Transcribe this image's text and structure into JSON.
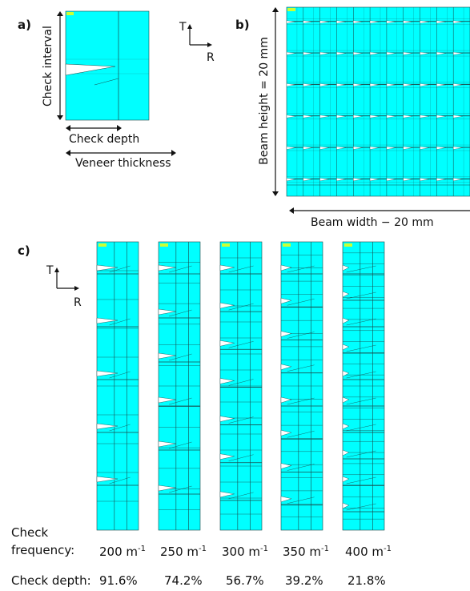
{
  "panels": {
    "a": "a)",
    "b": "b)",
    "c": "c)"
  },
  "axes": {
    "t": "T",
    "r": "R"
  },
  "panel_a": {
    "check_interval": "Check interval",
    "check_depth": "Check depth",
    "veneer_thickness": "Veneer thickness"
  },
  "panel_b": {
    "beam_height": "Beam height = 20 mm",
    "beam_width": "Beam width − 20 mm"
  },
  "panel_c": {
    "freq_label_line1": "Check",
    "freq_label_line2": "frequency:",
    "depth_label": "Check depth:",
    "columns": [
      {
        "freq_num": "200 m",
        "freq_exp": "-1",
        "depth": "91.6%"
      },
      {
        "freq_num": "250 m",
        "freq_exp": "-1",
        "depth": "74.2%"
      },
      {
        "freq_num": "300 m",
        "freq_exp": "-1",
        "depth": "56.7%"
      },
      {
        "freq_num": "350 m",
        "freq_exp": "-1",
        "depth": "39.2%"
      },
      {
        "freq_num": "400 m",
        "freq_exp": "-1",
        "depth": "21.8%"
      }
    ]
  },
  "colors": {
    "mesh_fill": "#00ffff",
    "mesh_line": "#1a4a4a",
    "text": "#111111",
    "legend_marker": "#ccff33"
  }
}
